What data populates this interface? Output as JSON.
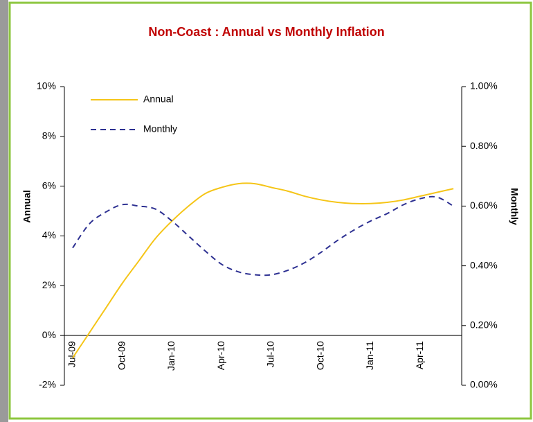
{
  "chart_data": {
    "type": "line",
    "title": "Non-Coast : Annual vs Monthly Inflation",
    "ylabel": "Annual",
    "y2label": "Monthly",
    "categories": [
      "Jul-09",
      null,
      null,
      "Oct-09",
      null,
      null,
      "Jan-10",
      null,
      null,
      "Apr-10",
      null,
      null,
      "Jul-10",
      null,
      null,
      "Oct-10",
      null,
      null,
      "Jan-11",
      null,
      null,
      "Apr-11",
      null,
      null
    ],
    "series": [
      {
        "name": "Annual",
        "color": "#f5c518",
        "dash": false,
        "values": [
          -0.9,
          0.1,
          1.1,
          2.1,
          3.0,
          3.9,
          4.6,
          5.2,
          5.7,
          5.95,
          6.1,
          6.1,
          5.95,
          5.8,
          5.6,
          5.45,
          5.35,
          5.3,
          5.3,
          5.35,
          5.45,
          5.6,
          5.75,
          5.9
        ]
      },
      {
        "name": "Monthly",
        "color": "#2e3192",
        "dash": true,
        "axis": "y2",
        "values": [
          0.46,
          0.54,
          0.58,
          0.605,
          0.6,
          0.59,
          0.55,
          0.5,
          0.45,
          0.405,
          0.38,
          0.37,
          0.37,
          0.385,
          0.41,
          0.445,
          0.485,
          0.52,
          0.55,
          0.575,
          0.605,
          0.625,
          0.63,
          0.6
        ]
      }
    ],
    "ylim": [
      -2,
      10
    ],
    "yticks": [
      {
        "value": -2,
        "label": "-2%"
      },
      {
        "value": 0,
        "label": "0%"
      },
      {
        "value": 2,
        "label": "2%"
      },
      {
        "value": 4,
        "label": "4%"
      },
      {
        "value": 6,
        "label": "6%"
      },
      {
        "value": 8,
        "label": "8%"
      },
      {
        "value": 10,
        "label": "10%"
      }
    ],
    "y2lim": [
      0,
      1
    ],
    "y2ticks": [
      {
        "value": 0,
        "label": "0.00%"
      },
      {
        "value": 0.2,
        "label": "0.20%"
      },
      {
        "value": 0.4,
        "label": "0.40%"
      },
      {
        "value": 0.6,
        "label": "0.60%"
      },
      {
        "value": 0.8,
        "label": "0.80%"
      },
      {
        "value": 1,
        "label": "1.00%"
      }
    ],
    "legend": "top-left",
    "grid": false
  }
}
